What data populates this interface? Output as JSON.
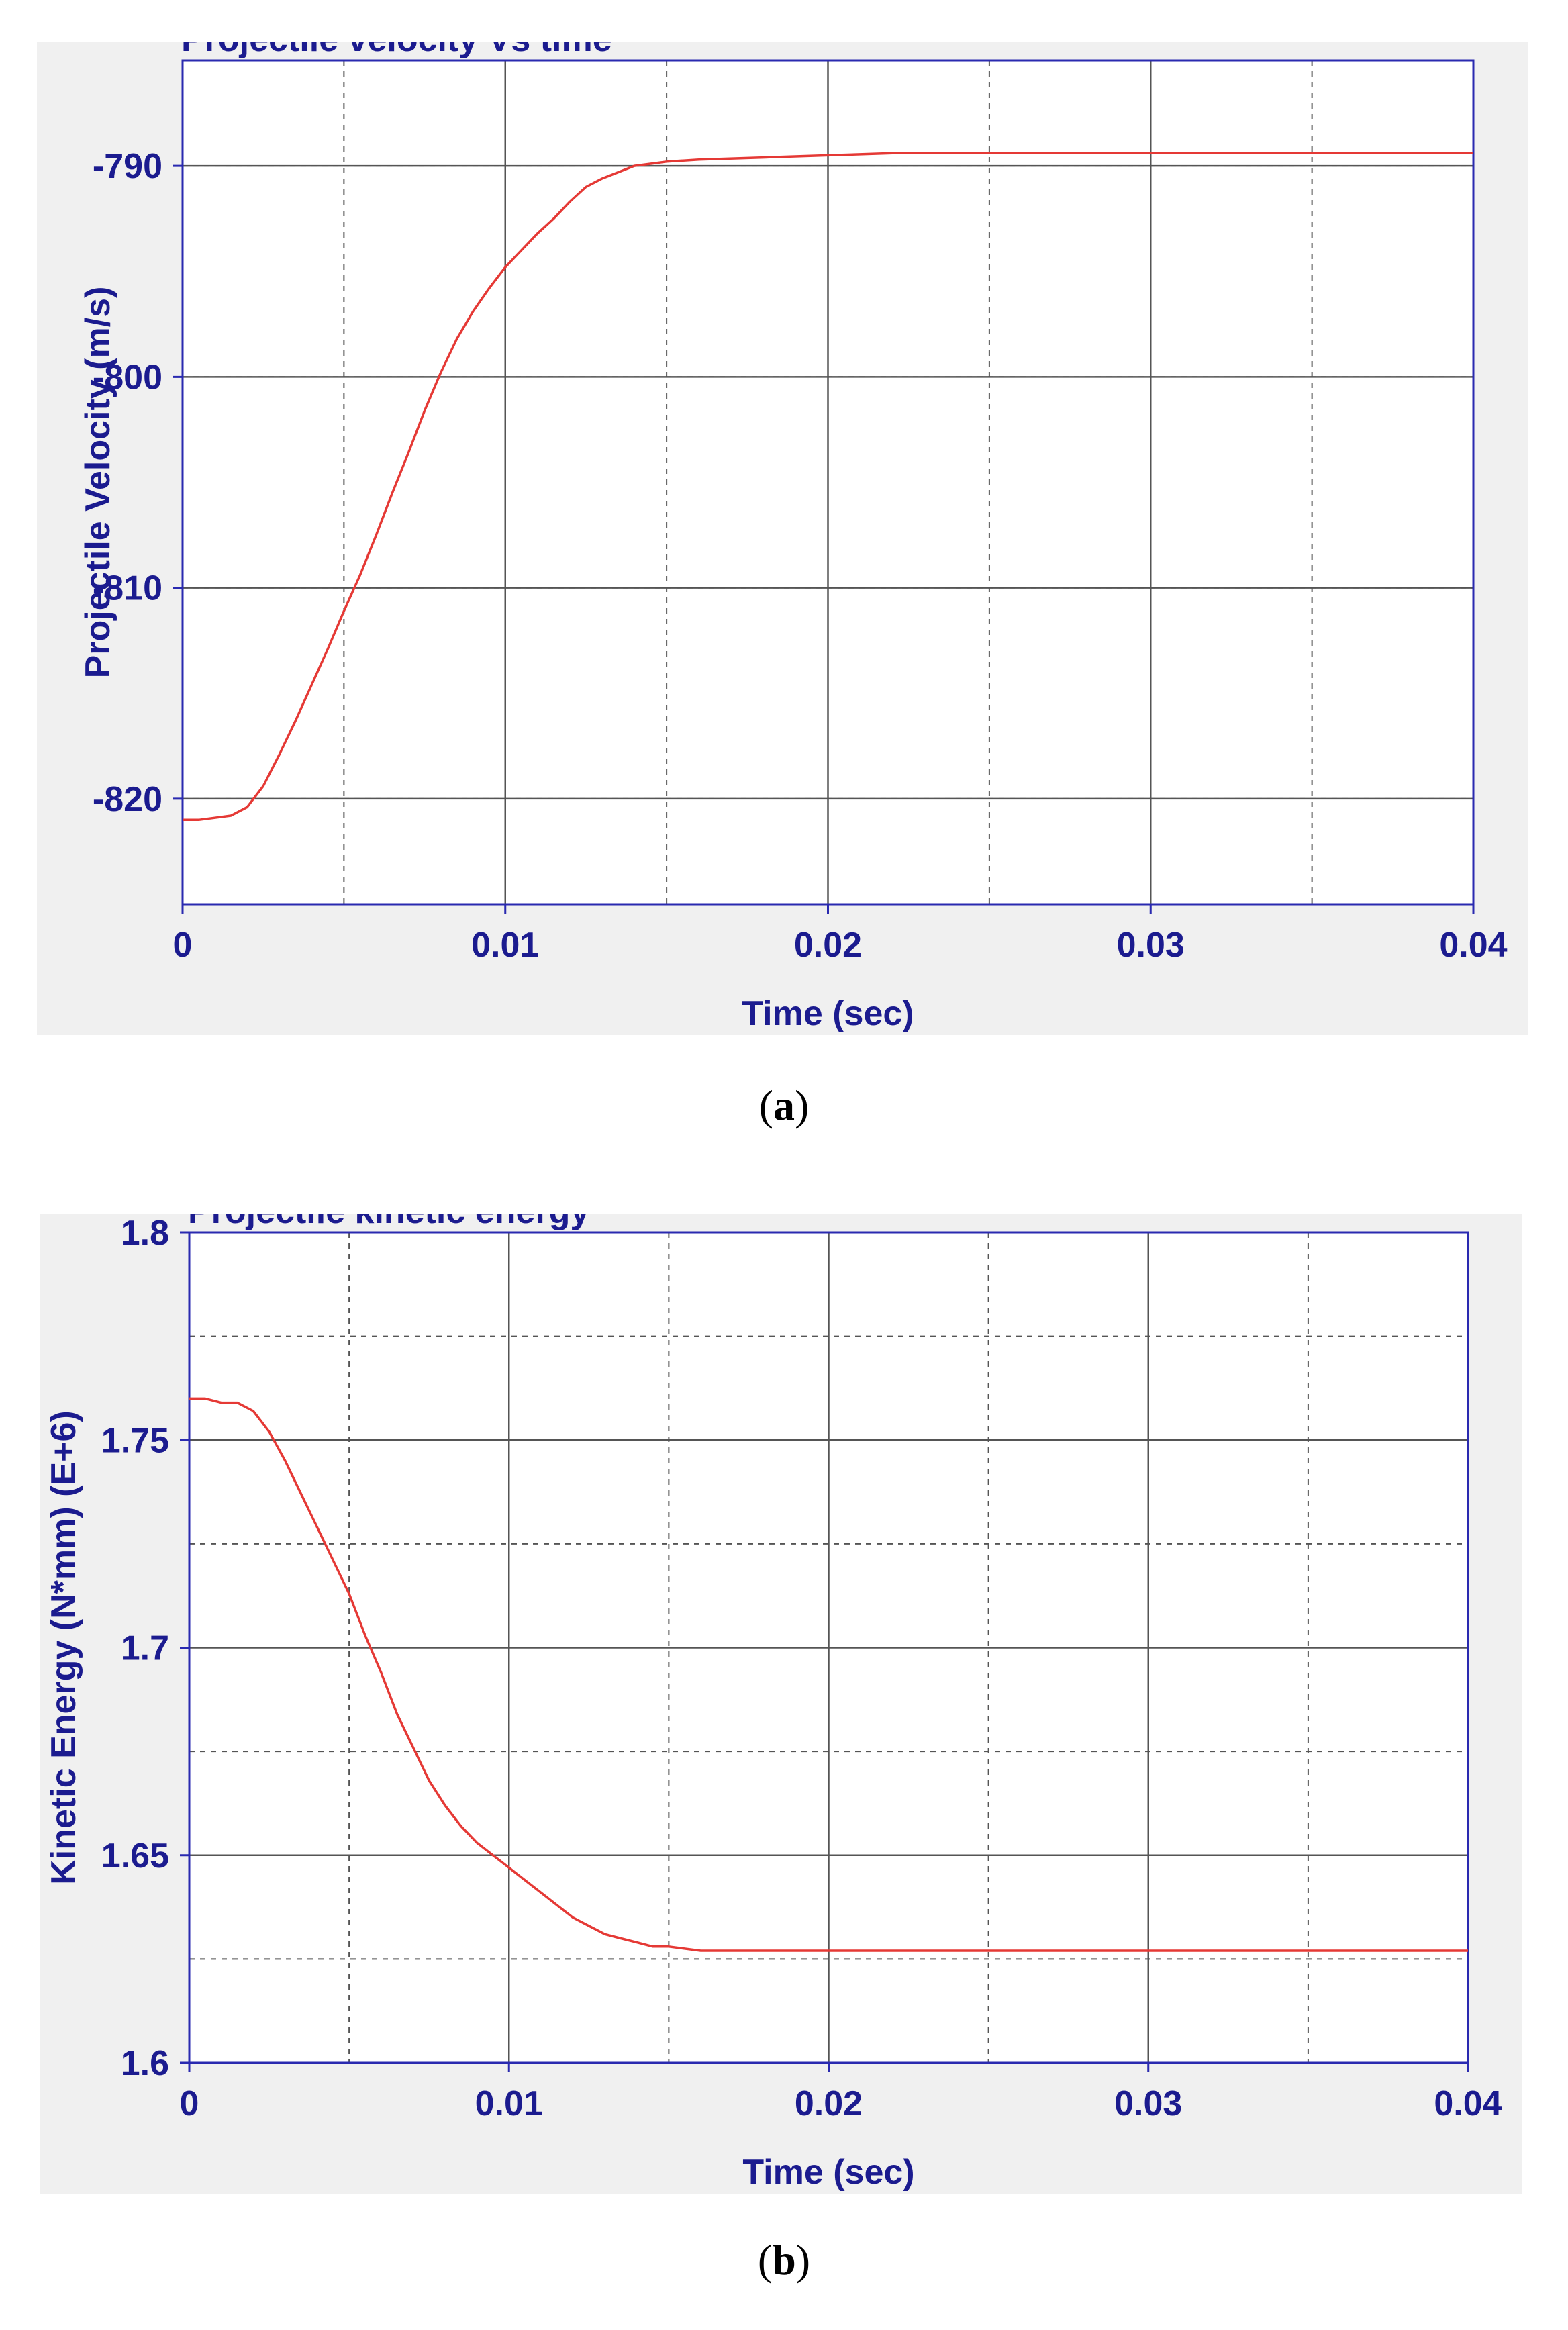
{
  "chart_data": [
    {
      "type": "line",
      "title": "Projectile velocity Vs time",
      "xlabel": "Time (sec)",
      "ylabel": "Projectile Velocity (m/s)",
      "xlim": [
        0,
        0.04
      ],
      "ylim": [
        -825,
        -785
      ],
      "x_ticks": [
        "0",
        "0.01",
        "0.02",
        "0.03",
        "0.04"
      ],
      "y_ticks": [
        "-790",
        "-800",
        "-810",
        "-820"
      ],
      "x_tick_values": [
        0,
        0.01,
        0.02,
        0.03,
        0.04
      ],
      "y_tick_values": [
        -790,
        -800,
        -810,
        -820
      ],
      "grid": true,
      "line_color": "#e53935",
      "series": [
        {
          "x": [
            0,
            0.0005,
            0.001,
            0.0015,
            0.002,
            0.0025,
            0.003,
            0.0035,
            0.004,
            0.0045,
            0.005,
            0.0055,
            0.006,
            0.0065,
            0.007,
            0.0075,
            0.008,
            0.0085,
            0.009,
            0.0095,
            0.01,
            0.0105,
            0.011,
            0.0115,
            0.012,
            0.0125,
            0.013,
            0.0135,
            0.014,
            0.0145,
            0.015,
            0.016,
            0.018,
            0.02,
            0.022,
            0.025,
            0.03,
            0.035,
            0.04
          ],
          "y": [
            -821,
            -821,
            -820.9,
            -820.8,
            -820.4,
            -819.4,
            -817.9,
            -816.3,
            -814.6,
            -812.9,
            -811.1,
            -809.4,
            -807.5,
            -805.5,
            -803.6,
            -801.6,
            -799.8,
            -798.2,
            -796.9,
            -795.8,
            -794.8,
            -794,
            -793.2,
            -792.5,
            -791.7,
            -791,
            -790.6,
            -790.3,
            -790,
            -789.9,
            -789.8,
            -789.7,
            -789.6,
            -789.5,
            -789.4,
            -789.4,
            -789.4,
            -789.4,
            -789.4
          ]
        }
      ],
      "caption_label": "a"
    },
    {
      "type": "line",
      "title": "Projectile kinetic energy",
      "xlabel": "Time (sec)",
      "ylabel": "Kinetic Energy (N*mm) (E+6)",
      "xlim": [
        0,
        0.04
      ],
      "ylim": [
        1.6,
        1.8
      ],
      "x_ticks": [
        "0",
        "0.01",
        "0.02",
        "0.03",
        "0.04"
      ],
      "y_ticks": [
        "1.8",
        "1.75",
        "1.7",
        "1.65",
        "1.6"
      ],
      "x_tick_values": [
        0,
        0.01,
        0.02,
        0.03,
        0.04
      ],
      "y_tick_values": [
        1.8,
        1.75,
        1.7,
        1.65,
        1.6
      ],
      "grid": true,
      "line_color": "#e53935",
      "series": [
        {
          "x": [
            0,
            0.0005,
            0.001,
            0.0015,
            0.002,
            0.0025,
            0.003,
            0.0035,
            0.004,
            0.0045,
            0.005,
            0.0055,
            0.006,
            0.0065,
            0.007,
            0.0075,
            0.008,
            0.0085,
            0.009,
            0.0095,
            0.01,
            0.0105,
            0.011,
            0.0115,
            0.012,
            0.0125,
            0.013,
            0.0135,
            0.014,
            0.0145,
            0.015,
            0.016,
            0.018,
            0.02,
            0.022,
            0.025,
            0.03,
            0.035,
            0.04
          ],
          "y": [
            1.76,
            1.76,
            1.759,
            1.759,
            1.757,
            1.752,
            1.745,
            1.737,
            1.729,
            1.721,
            1.713,
            1.703,
            1.694,
            1.684,
            1.676,
            1.668,
            1.662,
            1.657,
            1.653,
            1.65,
            1.647,
            1.644,
            1.641,
            1.638,
            1.635,
            1.633,
            1.631,
            1.63,
            1.629,
            1.628,
            1.628,
            1.627,
            1.627,
            1.627,
            1.627,
            1.627,
            1.627,
            1.627,
            1.627
          ]
        }
      ],
      "caption_label": "b"
    }
  ]
}
